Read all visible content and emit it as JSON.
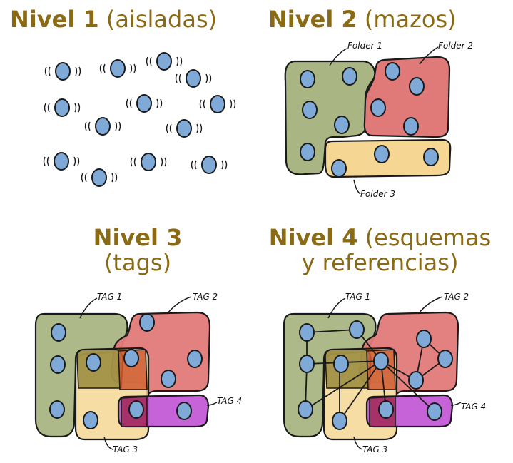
{
  "panels": {
    "level1": {
      "title_bold": "Nivel 1",
      "title_rest": "(aisladas)"
    },
    "level2": {
      "title_bold": "Nivel 2",
      "title_rest": "(mazos)",
      "labels": [
        "Folder 1",
        "Folder 2",
        "Folder 3"
      ]
    },
    "level3": {
      "title_bold": "Nivel 3",
      "title_rest": "(tags)",
      "labels": [
        "TAG 1",
        "TAG 2",
        "TAG 3",
        "TAG 4"
      ]
    },
    "level4": {
      "title_bold": "Nivel 4",
      "title_rest_1": "(esquemas",
      "title_rest_2": "y referencias)",
      "labels": [
        "TAG 1",
        "TAG 2",
        "TAG 3",
        "TAG 4"
      ]
    }
  },
  "colors": {
    "title": "#8b6a14",
    "node": "#7fa9d6",
    "green": "#a9b583",
    "red": "#e07a78",
    "yellow": "#f5d793",
    "purple": "#c45bd6"
  }
}
